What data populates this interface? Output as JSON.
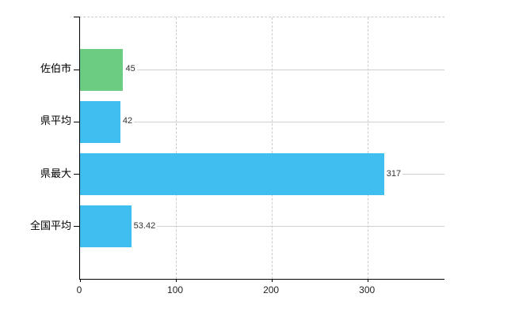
{
  "chart_data": {
    "type": "bar",
    "orientation": "horizontal",
    "title": "",
    "categories": [
      "佐伯市",
      "県平均",
      "県最大",
      "全国平均"
    ],
    "values": [
      45,
      42,
      317,
      53.42
    ],
    "value_labels": [
      "45",
      "42",
      "317",
      "53.42"
    ],
    "bar_colors": [
      "#6ccd82",
      "#3fbfef",
      "#3fbfef",
      "#3fbfef"
    ],
    "xticks": [
      0,
      100,
      200,
      300
    ],
    "xtick_labels": [
      "0",
      "100",
      "200",
      "300"
    ],
    "xlim": [
      0,
      380
    ],
    "grid": true,
    "legend": false
  },
  "colors": {
    "background": "#ffffff",
    "axis": "#000000",
    "gridline": "#cccccc",
    "bar_green": "#6ccd82",
    "bar_blue": "#3fbfef",
    "value_text": "#333333",
    "tick_text": "#222222",
    "category_text": "#000000"
  }
}
